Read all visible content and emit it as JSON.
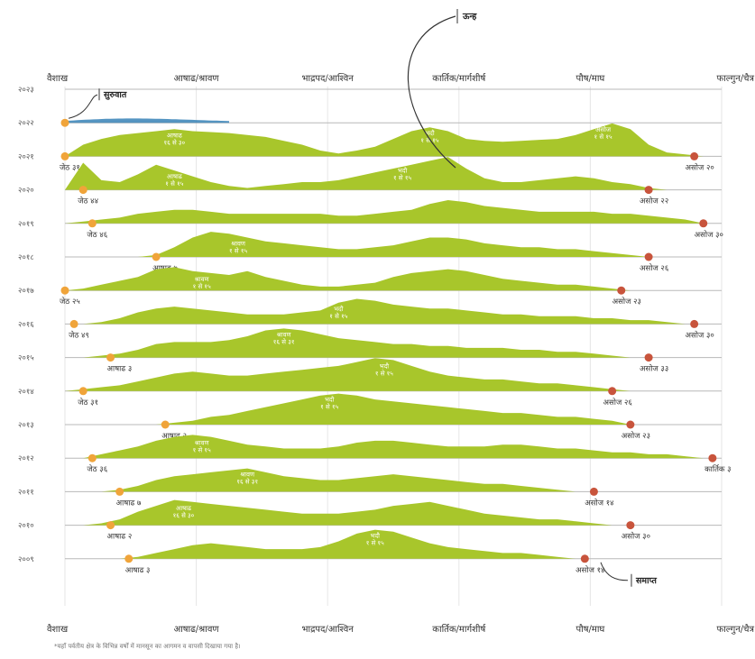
{
  "chart_data": {
    "type": "area",
    "x_axis": {
      "unit": "weeks",
      "range": [
        0,
        36
      ],
      "month_labels": [
        "वैशाख",
        "आषाढ/श्रावण",
        "भाद्रपद/आश्विन",
        "कार्तिक/मार्गशीर्ष",
        "पौष/माघ",
        "फाल्गुन/चैत्र"
      ],
      "month_positions": [
        0,
        7.2,
        14.4,
        21.6,
        28.8,
        36
      ]
    },
    "colors": {
      "area": "#a8c62b",
      "start_dot": "#f0a43a",
      "end_dot": "#c8543c",
      "line": "#b8b8b8",
      "blue": "#2b7bb3"
    },
    "annotations": {
      "start": "सुरुवात",
      "top": "ऊन्ह",
      "end": "समाप्त"
    },
    "footnote": "*यहाँ पर्वतीय क्षेत्र के विभिन्न वर्षों में मानसून का आगमन व वापसी दिखाया गया है।",
    "rows": [
      {
        "year": "२०२३",
        "start": null,
        "end": null,
        "start_label": "",
        "end_label": "",
        "values": [],
        "peaks": []
      },
      {
        "year": "२०२२",
        "start": 0,
        "end": 9,
        "start_label": "",
        "end_label": "",
        "values": [],
        "peaks": [],
        "blue": true
      },
      {
        "year": "२०२१",
        "start": 0,
        "end": 34.5,
        "start_label": "जेठ ३१",
        "end_label": "असोज २०",
        "values": [
          0,
          6,
          9,
          11,
          12,
          13,
          14,
          13,
          12.5,
          12,
          11,
          10,
          8,
          6,
          3,
          1.5,
          3,
          5,
          9,
          13,
          15,
          13,
          9,
          8,
          7.5,
          8,
          8.5,
          9,
          11,
          14,
          17,
          14,
          6,
          2,
          1,
          0
        ],
        "peaks": [
          {
            "x": 6,
            "l1": "आषाढ",
            "l2": "१६ से ३०"
          },
          {
            "x": 20,
            "l1": "भदौ",
            "l2": "१ से १५"
          },
          {
            "x": 29.5,
            "l1": "असोज",
            "l2": "१ से १५"
          }
        ]
      },
      {
        "year": "२०२०",
        "start": 1,
        "end": 32,
        "start_label": "जेठ ४४",
        "end_label": "असोज २२",
        "values": [
          0,
          14,
          5,
          4,
          8,
          13,
          10,
          7,
          4,
          2,
          1,
          2,
          3,
          4,
          4,
          5,
          7,
          9,
          11,
          13,
          15,
          17,
          11,
          6,
          4,
          4,
          5,
          6,
          7,
          6,
          4,
          3,
          1,
          0,
          0,
          0
        ],
        "peaks": [
          {
            "x": 6,
            "l1": "आषाढ",
            "l2": "१ से १५"
          },
          {
            "x": 18.5,
            "l1": "भदौ",
            "l2": "१ से १५"
          }
        ]
      },
      {
        "year": "२०१९",
        "start": 1.5,
        "end": 35,
        "start_label": "जेठ ४६",
        "end_label": "असोज ३०",
        "values": [
          0,
          1,
          2,
          3,
          5,
          6,
          7,
          7,
          6,
          5,
          5,
          5,
          5,
          5,
          5,
          4,
          4,
          5,
          6,
          7,
          10,
          12,
          11,
          9,
          8,
          7,
          6,
          6,
          6,
          6,
          5,
          5,
          4,
          3,
          2,
          0
        ],
        "peaks": []
      },
      {
        "year": "२०१८",
        "start": 5,
        "end": 32,
        "start_label": "आषाढ ७",
        "end_label": "असोज २६",
        "values": [
          0,
          0,
          0,
          0,
          0,
          1,
          5,
          10,
          13,
          12,
          10,
          8,
          7,
          6,
          5,
          4,
          4,
          5,
          6,
          8,
          10,
          10,
          9,
          7,
          6,
          5,
          5,
          4,
          4,
          3,
          2,
          1,
          0,
          0,
          0,
          0
        ],
        "peaks": [
          {
            "x": 9.5,
            "l1": "श्रावण",
            "l2": "१ से १५"
          }
        ]
      },
      {
        "year": "२०१७",
        "start": 0,
        "end": 30.5,
        "start_label": "जेठ २५",
        "end_label": "असोज २३",
        "values": [
          0,
          1,
          3,
          5,
          7,
          11,
          12,
          10,
          9,
          8,
          10,
          7,
          5,
          3,
          2,
          2,
          3,
          4,
          7,
          9,
          10,
          11,
          10,
          8,
          6,
          5,
          4,
          3,
          3,
          2,
          1,
          0,
          0,
          0,
          0,
          0
        ],
        "peaks": [
          {
            "x": 7.5,
            "l1": "श्रावण",
            "l2": "१ से १५"
          }
        ]
      },
      {
        "year": "२०१६",
        "start": 0.5,
        "end": 34.5,
        "start_label": "जेठ ४९",
        "end_label": "असोज ३०",
        "values": [
          0,
          0,
          1,
          3,
          6,
          8,
          9,
          8,
          7,
          6,
          5,
          5,
          5,
          6,
          7,
          11,
          13,
          12,
          10,
          9,
          8,
          8,
          7,
          6,
          5,
          5,
          4,
          4,
          4,
          3,
          3,
          2,
          2,
          1,
          0,
          0
        ],
        "peaks": [
          {
            "x": 15,
            "l1": "भदौ",
            "l2": "१ से १५"
          }
        ]
      },
      {
        "year": "२०१५",
        "start": 2.5,
        "end": 32,
        "start_label": "आषाढ ३",
        "end_label": "असोज ३३",
        "values": [
          0,
          0,
          1,
          2,
          4,
          7,
          8,
          8,
          8,
          9,
          11,
          14,
          15,
          14,
          12,
          10,
          9,
          8,
          7,
          7,
          6,
          6,
          5,
          5,
          5,
          4,
          4,
          3,
          3,
          2,
          1,
          0,
          0,
          0,
          0,
          0
        ],
        "peaks": [
          {
            "x": 12,
            "l1": "श्रावण",
            "l2": "१६ से ३१"
          }
        ]
      },
      {
        "year": "२०१४",
        "start": 1,
        "end": 30,
        "start_label": "जेठ ३१",
        "end_label": "असोज २६",
        "values": [
          0,
          1,
          2,
          3,
          5,
          7,
          9,
          10,
          9,
          8,
          8,
          9,
          10,
          11,
          12,
          13,
          15,
          17,
          16,
          13,
          10,
          8,
          7,
          6,
          6,
          5,
          4,
          4,
          3,
          2,
          1,
          0,
          0,
          0,
          0,
          0
        ],
        "peaks": [
          {
            "x": 17.5,
            "l1": "भदौ",
            "l2": "१ से १५"
          }
        ]
      },
      {
        "year": "२०१३",
        "start": 5.5,
        "end": 31,
        "start_label": "आषाढ २",
        "end_label": "असोज २३",
        "values": [
          0,
          0,
          0,
          0,
          0,
          0,
          1,
          2,
          4,
          5,
          7,
          9,
          11,
          13,
          15,
          16,
          15,
          13,
          12,
          11,
          10,
          9,
          8,
          7,
          6,
          6,
          5,
          4,
          4,
          3,
          2,
          0,
          0,
          0,
          0,
          0
        ],
        "peaks": [
          {
            "x": 14.5,
            "l1": "भदौ",
            "l2": "१ से १५"
          }
        ]
      },
      {
        "year": "२०१२",
        "start": 1.5,
        "end": 35.5,
        "start_label": "जेठ ३६",
        "end_label": "कार्तिक ३",
        "values": [
          0,
          0,
          2,
          4,
          6,
          9,
          11,
          12,
          11,
          9,
          7,
          6,
          5,
          5,
          5,
          6,
          8,
          9,
          9,
          8,
          7,
          6,
          6,
          6,
          7,
          7,
          6,
          5,
          5,
          4,
          3,
          3,
          2,
          2,
          1,
          0
        ],
        "peaks": [
          {
            "x": 7.5,
            "l1": "श्रावण",
            "l2": "१ से १५"
          }
        ]
      },
      {
        "year": "२०११",
        "start": 3,
        "end": 29,
        "start_label": "आषाढ ७",
        "end_label": "असोज १४",
        "values": [
          0,
          0,
          0,
          1,
          3,
          6,
          8,
          9,
          10,
          11,
          12,
          10,
          8,
          7,
          6,
          6,
          7,
          8,
          9,
          8,
          7,
          6,
          5,
          4,
          4,
          3,
          2,
          1,
          0,
          0,
          0,
          0,
          0,
          0,
          0,
          0
        ],
        "peaks": [
          {
            "x": 10,
            "l1": "श्रावण",
            "l2": "१६ से ३१"
          }
        ]
      },
      {
        "year": "२०१०",
        "start": 2.5,
        "end": 31,
        "start_label": "आषाढ २",
        "end_label": "असोज ३०",
        "values": [
          0,
          0,
          1,
          3,
          7,
          10,
          13,
          12,
          11,
          10,
          9,
          8,
          7,
          6,
          6,
          6,
          7,
          8,
          10,
          11,
          12,
          10,
          8,
          6,
          5,
          4,
          3,
          3,
          2,
          1,
          0,
          0,
          0,
          0,
          0,
          0
        ],
        "peaks": [
          {
            "x": 6.5,
            "l1": "आषाढ",
            "l2": "१६ से ३०"
          }
        ]
      },
      {
        "year": "२००९",
        "start": 3.5,
        "end": 28.5,
        "start_label": "आषाढ ३",
        "end_label": "असोज १४",
        "values": [
          0,
          0,
          0,
          0,
          1,
          3,
          5,
          7,
          8,
          7,
          6,
          5,
          5,
          5,
          6,
          9,
          13,
          15,
          14,
          11,
          8,
          6,
          5,
          4,
          3,
          3,
          2,
          1,
          0,
          0,
          0,
          0,
          0,
          0,
          0,
          0
        ],
        "peaks": [
          {
            "x": 17,
            "l1": "भदौ",
            "l2": "१ से १५"
          }
        ]
      }
    ]
  }
}
